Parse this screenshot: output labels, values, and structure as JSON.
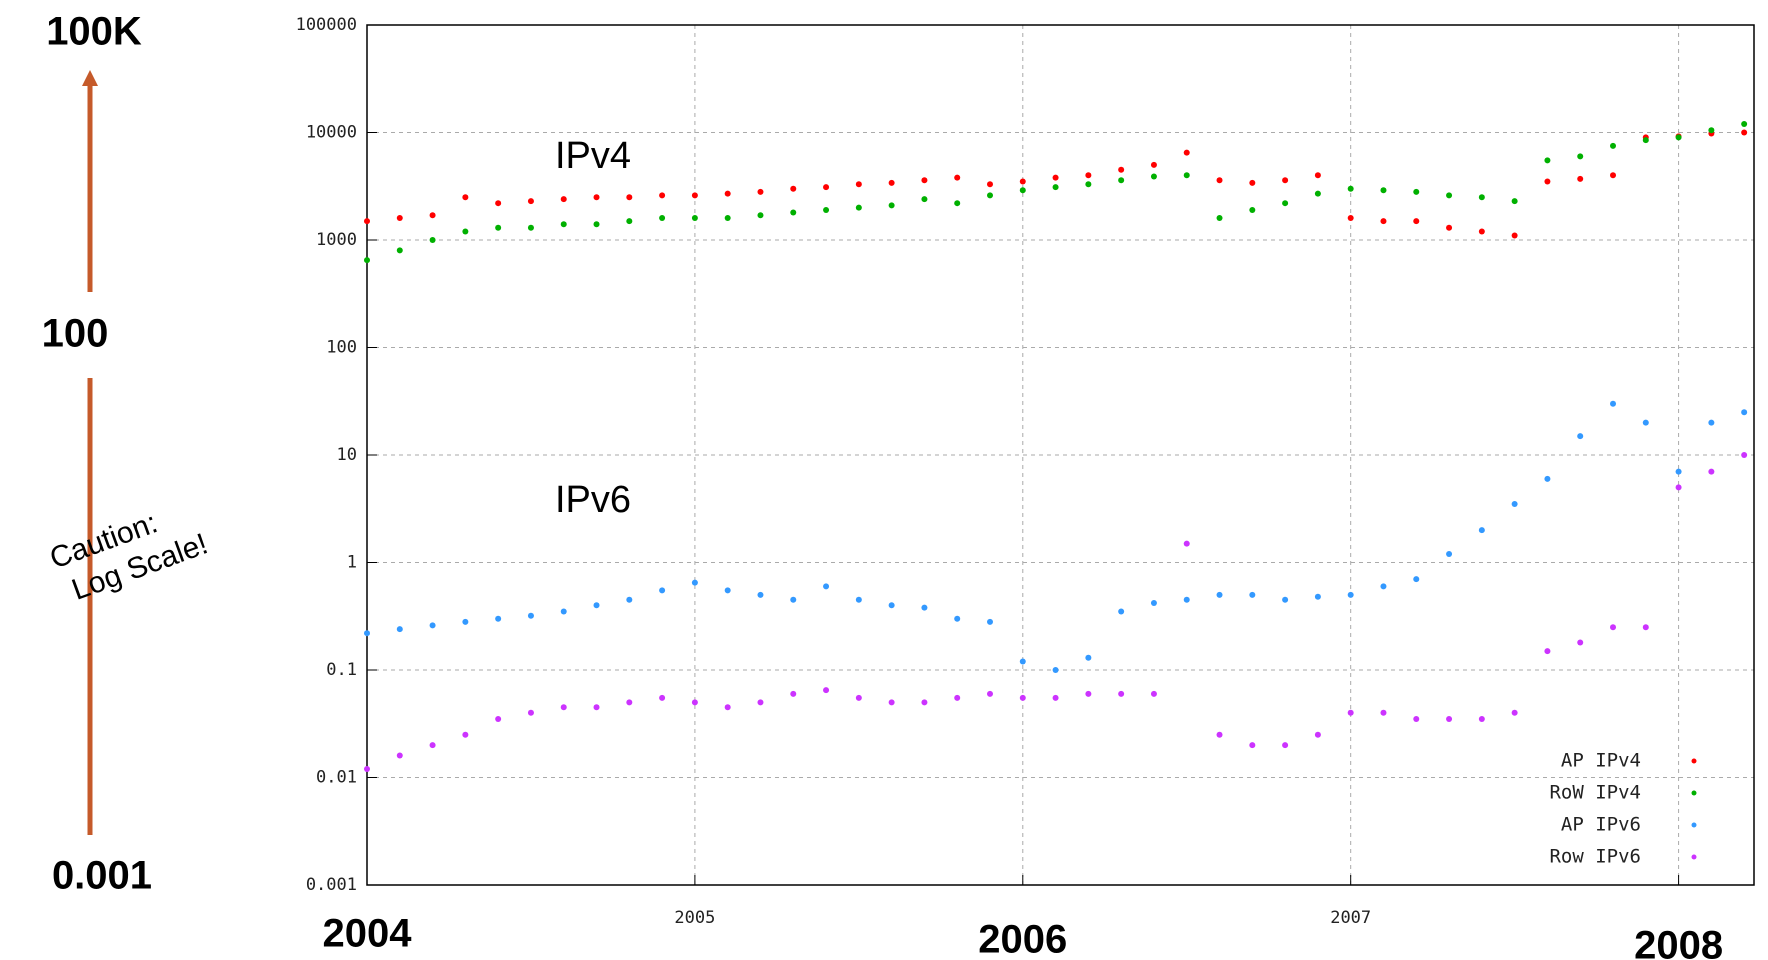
{
  "chart_data": {
    "type": "scatter",
    "log_y": true,
    "grid": true,
    "legend": "bottom-right",
    "annotations": [
      "100K",
      "100",
      "0.001",
      "Caution:",
      "Log Scale!",
      "IPv4",
      "IPv6"
    ],
    "xlim": [
      2004,
      2008.23
    ],
    "xticks": [
      2004,
      2005,
      2006,
      2007,
      2008
    ],
    "ylim": [
      0.001,
      100000
    ],
    "yticks": [
      100000,
      10000,
      1000,
      100,
      10,
      1,
      0.1,
      0.01,
      0.001
    ],
    "x": [
      2004.0,
      2004.1,
      2004.2,
      2004.3,
      2004.4,
      2004.5,
      2004.6,
      2004.7,
      2004.8,
      2004.9,
      2005.0,
      2005.1,
      2005.2,
      2005.3,
      2005.4,
      2005.5,
      2005.6,
      2005.7,
      2005.8,
      2005.9,
      2006.0,
      2006.1,
      2006.2,
      2006.3,
      2006.4,
      2006.5,
      2006.6,
      2006.7,
      2006.8,
      2006.9,
      2007.0,
      2007.1,
      2007.2,
      2007.3,
      2007.4,
      2007.5,
      2007.6,
      2007.7,
      2007.8,
      2007.9,
      2008.0,
      2008.1,
      2008.2
    ],
    "series": [
      {
        "name": "AP IPv4",
        "color": "#ff0000",
        "values": [
          1500,
          1600,
          1700,
          2500,
          2200,
          2300,
          2400,
          2500,
          2500,
          2600,
          2600,
          2700,
          2800,
          3000,
          3100,
          3300,
          3400,
          3600,
          3800,
          3300,
          3500,
          3800,
          4000,
          4500,
          5000,
          6500,
          3600,
          3400,
          3600,
          4000,
          1600,
          1500,
          1500,
          1300,
          1200,
          1100,
          3500,
          3700,
          4000,
          9000,
          9200,
          9800,
          10000
        ]
      },
      {
        "name": "RoW IPv4",
        "color": "#00b000",
        "values": [
          650,
          800,
          1000,
          1200,
          1300,
          1300,
          1400,
          1400,
          1500,
          1600,
          1600,
          1600,
          1700,
          1800,
          1900,
          2000,
          2100,
          2400,
          2200,
          2600,
          2900,
          3100,
          3300,
          3600,
          3900,
          4000,
          1600,
          1900,
          2200,
          2700,
          3000,
          2900,
          2800,
          2600,
          2500,
          2300,
          5500,
          6000,
          7500,
          8500,
          9000,
          10500,
          12000
        ]
      },
      {
        "name": "AP IPv6",
        "color": "#3399ff",
        "values": [
          0.22,
          0.24,
          0.26,
          0.28,
          0.3,
          0.32,
          0.35,
          0.4,
          0.45,
          0.55,
          0.65,
          0.55,
          0.5,
          0.45,
          0.6,
          0.45,
          0.4,
          0.38,
          0.3,
          0.28,
          0.12,
          0.1,
          0.13,
          0.35,
          0.42,
          0.45,
          0.5,
          0.5,
          0.45,
          0.48,
          0.5,
          0.6,
          0.7,
          1.2,
          2,
          3.5,
          6,
          15,
          30,
          20,
          7,
          20,
          25
        ]
      },
      {
        "name": "Row IPv6",
        "color": "#cc33ff",
        "values": [
          0.012,
          0.016,
          0.02,
          0.025,
          0.035,
          0.04,
          0.045,
          0.045,
          0.05,
          0.055,
          0.05,
          0.045,
          0.05,
          0.06,
          0.065,
          0.055,
          0.05,
          0.05,
          0.055,
          0.06,
          0.055,
          0.055,
          0.06,
          0.06,
          0.06,
          1.5,
          0.025,
          0.02,
          0.02,
          0.025,
          0.04,
          0.04,
          0.035,
          0.035,
          0.035,
          0.04,
          0.15,
          0.18,
          0.25,
          0.25,
          5,
          7,
          10
        ]
      }
    ]
  }
}
